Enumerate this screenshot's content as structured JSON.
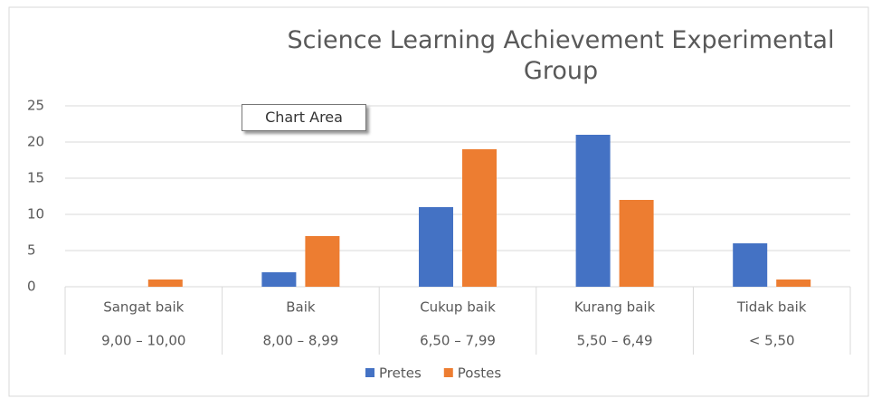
{
  "chart_data": {
    "type": "bar",
    "title": "Science Learning Achievement Experimental Group",
    "tooltip": "Chart Area",
    "categories": [
      "Sangat baik",
      "Baik",
      "Cukup baik",
      "Kurang baik",
      "Tidak baik"
    ],
    "category_ranges": [
      "9,00 – 10,00",
      "8,00 – 8,99",
      "6,50 – 7,99",
      "5,50 – 6,49",
      "< 5,50"
    ],
    "series": [
      {
        "name": "Pretes",
        "color": "#4472c4",
        "values": [
          0,
          2,
          11,
          21,
          6
        ]
      },
      {
        "name": "Postes",
        "color": "#ed7d31",
        "values": [
          1,
          7,
          19,
          12,
          1
        ]
      }
    ],
    "ylim": [
      0,
      25
    ],
    "yticks": [
      0,
      5,
      10,
      15,
      20,
      25
    ],
    "grid": true,
    "legend": "bottom"
  }
}
